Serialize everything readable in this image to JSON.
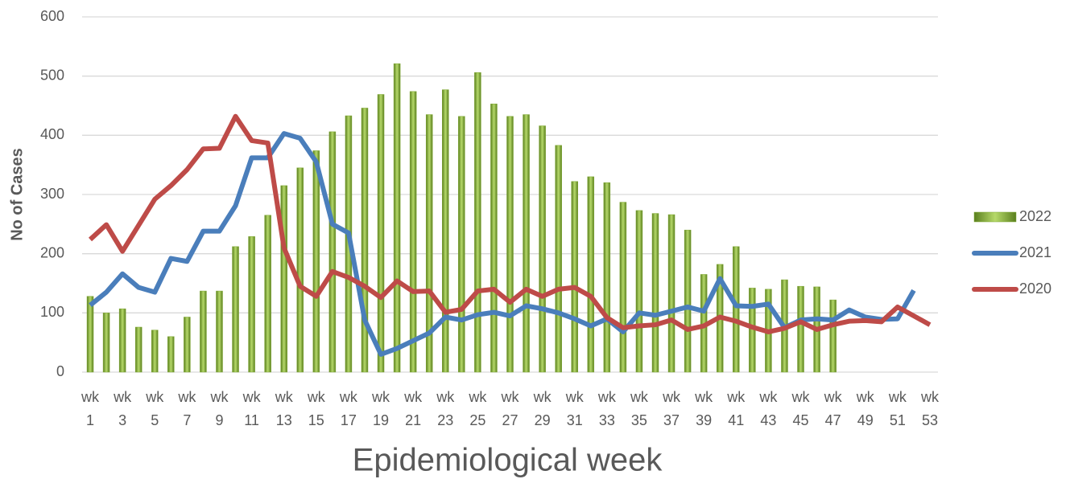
{
  "chart_data": {
    "type": "bar",
    "x_label": "Epidemiological week",
    "y_label": "No of Cases",
    "categories": [
      "wk 1",
      null,
      "wk 3",
      null,
      "wk 5",
      null,
      "wk 7",
      null,
      "wk 9",
      null,
      "wk 11",
      null,
      "wk 13",
      null,
      "wk 15",
      null,
      "wk 17",
      null,
      "wk 19",
      null,
      "wk 21",
      null,
      "wk 23",
      null,
      "wk 25",
      null,
      "wk 27",
      null,
      "wk 29",
      null,
      "wk 31",
      null,
      "wk 33",
      null,
      "wk 35",
      null,
      "wk 37",
      null,
      "wk 39",
      null,
      "wk 41",
      null,
      "wk 43",
      null,
      "wk 45",
      null,
      "wk 47",
      null,
      "wk 49",
      null,
      "wk 51",
      null,
      "wk 53"
    ],
    "series": [
      {
        "name": "2022",
        "type": "bar",
        "color": "#7fa832",
        "values": [
          128,
          100,
          107,
          76,
          71,
          60,
          93,
          137,
          137,
          212,
          229,
          265,
          315,
          345,
          374,
          406,
          433,
          446,
          469,
          521,
          474,
          435,
          477,
          432,
          506,
          453,
          432,
          435,
          416,
          383,
          322,
          330,
          320,
          287,
          273,
          268,
          266,
          240,
          165,
          182,
          212,
          142,
          140,
          156,
          145,
          144,
          122,
          null,
          null,
          null,
          null,
          null,
          null
        ]
      },
      {
        "name": "2021",
        "type": "line",
        "color": "#4a7ebb",
        "values": [
          113,
          135,
          166,
          143,
          135,
          192,
          187,
          238,
          238,
          281,
          362,
          362,
          403,
          395,
          355,
          250,
          235,
          88,
          30,
          40,
          53,
          66,
          93,
          88,
          97,
          101,
          95,
          112,
          107,
          100,
          90,
          78,
          90,
          68,
          100,
          96,
          103,
          110,
          103,
          158,
          112,
          111,
          115,
          75,
          88,
          90,
          88,
          105,
          93,
          89,
          90,
          138,
          null
        ]
      },
      {
        "name": "2020",
        "type": "line",
        "color": "#be4b48",
        "values": [
          224,
          249,
          204,
          248,
          292,
          315,
          342,
          377,
          378,
          432,
          391,
          387,
          210,
          145,
          128,
          170,
          160,
          145,
          126,
          154,
          136,
          137,
          101,
          106,
          137,
          140,
          118,
          140,
          128,
          140,
          143,
          128,
          92,
          75,
          78,
          80,
          88,
          72,
          78,
          93,
          86,
          76,
          68,
          74,
          85,
          72,
          80,
          86,
          87,
          85,
          110,
          95,
          80
        ]
      }
    ],
    "ylim": [
      0,
      600
    ],
    "yticks": [
      0,
      100,
      200,
      300,
      400,
      500,
      600
    ],
    "grid": true,
    "legend": "right"
  }
}
